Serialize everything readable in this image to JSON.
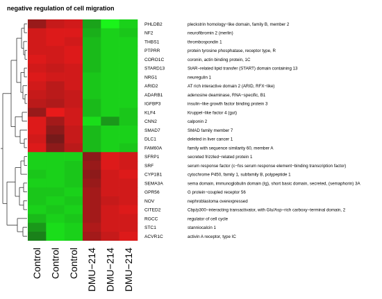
{
  "chart_data": {
    "type": "heatmap",
    "title": "negative regulation of cell migration",
    "columns": [
      "Control",
      "Control",
      "Control",
      "DMU−214",
      "DMU−214",
      "DMU−214"
    ],
    "row_dendrogram": true,
    "colors": {
      "high": "#ff1a1a",
      "mid": "#1a1a1a",
      "low": "#1aff1a"
    },
    "rows": [
      {
        "gene": "PHLDB2",
        "description": "pleckstrin homology−like domain, family B, member 2",
        "values": [
          0.55,
          0.75,
          0.8,
          -0.6,
          -0.95,
          -0.8
        ]
      },
      {
        "gene": "NF2",
        "description": "neurofibromin 2 (merlin)",
        "values": [
          0.8,
          0.85,
          0.85,
          -0.65,
          -0.8,
          -0.75
        ]
      },
      {
        "gene": "THBS1",
        "description": "thrombospondin 1",
        "values": [
          0.8,
          0.85,
          0.8,
          -0.7,
          -0.8,
          -0.8
        ]
      },
      {
        "gene": "PTPRR",
        "description": "protein tyrosine phosphatase, receptor type, R",
        "values": [
          0.8,
          0.8,
          0.85,
          -0.7,
          -0.8,
          -0.8
        ]
      },
      {
        "gene": "CORO1C",
        "description": "coronin, actin binding protein, 1C",
        "values": [
          0.85,
          0.8,
          0.85,
          -0.7,
          -0.8,
          -0.8
        ]
      },
      {
        "gene": "STARD13",
        "description": "StAR−related lipid transfer (START) domain containing 13",
        "values": [
          0.8,
          0.75,
          0.8,
          -0.7,
          -0.8,
          -0.8
        ]
      },
      {
        "gene": "NRG1",
        "description": "neuregulin 1",
        "values": [
          0.85,
          0.8,
          0.8,
          -0.75,
          -0.8,
          -0.8
        ]
      },
      {
        "gene": "ARID2",
        "description": "AT rich interactive domain 2 (ARID, RFX−like)",
        "values": [
          0.8,
          0.7,
          0.8,
          -0.75,
          -0.8,
          -0.8
        ]
      },
      {
        "gene": "ADARB1",
        "description": "adenosine deaminase, RNA−specific, B1",
        "values": [
          0.75,
          0.7,
          0.75,
          -0.75,
          -0.8,
          -0.8
        ]
      },
      {
        "gene": "IGFBP3",
        "description": "insulin−like growth factor binding protein 3",
        "values": [
          0.7,
          0.65,
          0.75,
          -0.7,
          -0.8,
          -0.8
        ]
      },
      {
        "gene": "KLF4",
        "description": "Kruppel−like factor 4 (gut)",
        "values": [
          0.55,
          0.9,
          0.8,
          -0.7,
          -0.8,
          -0.75
        ]
      },
      {
        "gene": "CNN2",
        "description": "calponin 2",
        "values": [
          0.85,
          0.6,
          0.8,
          -0.85,
          -0.55,
          -0.75
        ]
      },
      {
        "gene": "SMAD7",
        "description": "SMAD family member 7",
        "values": [
          0.85,
          0.5,
          0.75,
          -0.7,
          -0.8,
          -0.8
        ]
      },
      {
        "gene": "DLC1",
        "description": "deleted in liver cancer 1",
        "values": [
          0.8,
          0.4,
          0.75,
          -0.7,
          -0.8,
          -0.8
        ]
      },
      {
        "gene": "FAM60A",
        "description": "family with sequence similarity 60, member A",
        "values": [
          0.85,
          0.5,
          0.7,
          -0.7,
          -0.8,
          -0.75
        ]
      },
      {
        "gene": "SFRP1",
        "description": "secreted frizzled−related protein 1",
        "values": [
          -0.8,
          -0.8,
          -0.8,
          0.5,
          0.85,
          0.8
        ]
      },
      {
        "gene": "SRF",
        "description": "serum response factor (c−fos serum response element−binding transcription factor)",
        "values": [
          -0.8,
          -0.8,
          -0.75,
          0.55,
          0.85,
          0.8
        ]
      },
      {
        "gene": "CYP1B1",
        "description": "cytochrome P450, family 1, subfamily B, polypeptide 1",
        "values": [
          -0.75,
          -0.8,
          -0.75,
          0.5,
          0.8,
          0.85
        ]
      },
      {
        "gene": "SEMA3A",
        "description": "sema domain, immunoglobulin domain (Ig), short basic domain, secreted, (semaphorin) 3A",
        "values": [
          -0.8,
          -0.8,
          -0.75,
          0.55,
          0.8,
          0.8
        ]
      },
      {
        "gene": "GPR56",
        "description": "G protein−coupled receptor 56",
        "values": [
          -0.75,
          -0.75,
          -0.8,
          0.6,
          0.8,
          0.8
        ]
      },
      {
        "gene": "NOV",
        "description": "nephroblastoma overexpressed",
        "values": [
          -0.75,
          -0.8,
          -0.75,
          0.6,
          0.75,
          0.8
        ]
      },
      {
        "gene": "CITED2",
        "description": "Cbp/p300−interacting transactivator, with Glu/Asp−rich carboxy−terminal domain, 2",
        "values": [
          -0.8,
          -0.75,
          -0.8,
          0.6,
          0.8,
          0.85
        ]
      },
      {
        "gene": "RGCC",
        "description": "regulator of cell cycle",
        "values": [
          -0.7,
          -0.8,
          -0.75,
          0.6,
          0.8,
          0.8
        ]
      },
      {
        "gene": "STC1",
        "description": "stanniocalcin 1",
        "values": [
          -0.55,
          -0.85,
          -0.8,
          0.65,
          0.8,
          0.8
        ]
      },
      {
        "gene": "ACVR1C",
        "description": "activin A receptor, type IC",
        "values": [
          -0.45,
          -0.85,
          -0.8,
          0.6,
          0.75,
          0.85
        ]
      }
    ]
  }
}
